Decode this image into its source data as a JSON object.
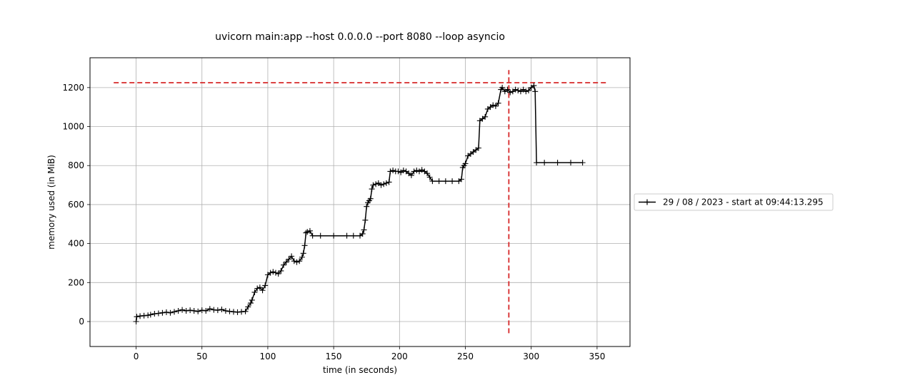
{
  "chart_data": {
    "type": "line",
    "title": "uvicorn main:app --host 0.0.0.0 --port 8080 --loop asyncio",
    "xlabel": "time (in seconds)",
    "ylabel": "memory used (in MiB)",
    "xlim": [
      -35,
      375
    ],
    "ylim": [
      -128,
      1353
    ],
    "xticks": [
      0,
      50,
      100,
      150,
      200,
      250,
      300,
      350
    ],
    "yticks": [
      0,
      200,
      400,
      600,
      800,
      1000,
      1200
    ],
    "xtick_labels": [
      "0",
      "50",
      "100",
      "150",
      "200",
      "250",
      "300",
      "350"
    ],
    "ytick_labels": [
      "0",
      "200",
      "400",
      "600",
      "800",
      "1000",
      "1200"
    ],
    "grid": true,
    "legend_position": "right",
    "colors": {
      "series": "#000000",
      "marker_line": "#d62728"
    },
    "series": [
      {
        "name": "29 / 08 / 2023 - start at 09:44:13.295",
        "marker": "+",
        "points": [
          [
            0,
            0
          ],
          [
            0.5,
            25
          ],
          [
            3,
            28
          ],
          [
            6,
            30
          ],
          [
            9,
            32
          ],
          [
            11,
            35
          ],
          [
            14,
            40
          ],
          [
            17,
            42
          ],
          [
            20,
            45
          ],
          [
            23,
            48
          ],
          [
            26,
            45
          ],
          [
            29,
            50
          ],
          [
            32,
            55
          ],
          [
            35,
            60
          ],
          [
            38,
            55
          ],
          [
            41,
            58
          ],
          [
            44,
            55
          ],
          [
            47,
            52
          ],
          [
            50,
            58
          ],
          [
            53,
            55
          ],
          [
            56,
            65
          ],
          [
            59,
            60
          ],
          [
            62,
            58
          ],
          [
            65,
            62
          ],
          [
            68,
            55
          ],
          [
            71,
            52
          ],
          [
            74,
            50
          ],
          [
            77,
            48
          ],
          [
            80,
            50
          ],
          [
            83,
            52
          ],
          [
            85,
            75
          ],
          [
            87,
            95
          ],
          [
            88,
            110
          ],
          [
            90,
            150
          ],
          [
            92,
            170
          ],
          [
            94,
            175
          ],
          [
            96,
            160
          ],
          [
            98,
            185
          ],
          [
            100,
            240
          ],
          [
            102,
            250
          ],
          [
            104,
            255
          ],
          [
            106,
            250
          ],
          [
            108,
            245
          ],
          [
            110,
            260
          ],
          [
            112,
            290
          ],
          [
            114,
            305
          ],
          [
            116,
            320
          ],
          [
            118,
            335
          ],
          [
            120,
            310
          ],
          [
            122,
            305
          ],
          [
            124,
            310
          ],
          [
            126,
            330
          ],
          [
            127,
            350
          ],
          [
            128,
            390
          ],
          [
            129,
            455
          ],
          [
            130,
            460
          ],
          [
            132,
            465
          ],
          [
            134,
            440
          ],
          [
            140,
            440
          ],
          [
            150,
            440
          ],
          [
            160,
            440
          ],
          [
            165,
            440
          ],
          [
            170,
            440
          ],
          [
            172,
            450
          ],
          [
            173,
            470
          ],
          [
            174,
            520
          ],
          [
            175,
            590
          ],
          [
            176,
            610
          ],
          [
            177,
            620
          ],
          [
            178,
            630
          ],
          [
            179,
            680
          ],
          [
            180,
            700
          ],
          [
            182,
            705
          ],
          [
            184,
            710
          ],
          [
            186,
            700
          ],
          [
            188,
            705
          ],
          [
            190,
            710
          ],
          [
            192,
            715
          ],
          [
            193,
            770
          ],
          [
            195,
            775
          ],
          [
            197,
            770
          ],
          [
            199,
            770
          ],
          [
            201,
            765
          ],
          [
            203,
            775
          ],
          [
            205,
            770
          ],
          [
            207,
            760
          ],
          [
            209,
            750
          ],
          [
            211,
            770
          ],
          [
            213,
            775
          ],
          [
            215,
            770
          ],
          [
            217,
            778
          ],
          [
            219,
            770
          ],
          [
            221,
            760
          ],
          [
            223,
            740
          ],
          [
            225,
            720
          ],
          [
            230,
            720
          ],
          [
            235,
            720
          ],
          [
            240,
            720
          ],
          [
            245,
            720
          ],
          [
            247,
            730
          ],
          [
            248,
            790
          ],
          [
            249,
            800
          ],
          [
            250,
            810
          ],
          [
            252,
            850
          ],
          [
            254,
            860
          ],
          [
            256,
            870
          ],
          [
            258,
            880
          ],
          [
            260,
            890
          ],
          [
            261,
            1030
          ],
          [
            263,
            1040
          ],
          [
            265,
            1050
          ],
          [
            267,
            1090
          ],
          [
            269,
            1100
          ],
          [
            271,
            1110
          ],
          [
            273,
            1105
          ],
          [
            275,
            1120
          ],
          [
            277,
            1190
          ],
          [
            278,
            1200
          ],
          [
            280,
            1180
          ],
          [
            282,
            1190
          ],
          [
            284,
            1175
          ],
          [
            286,
            1180
          ],
          [
            288,
            1190
          ],
          [
            290,
            1185
          ],
          [
            292,
            1180
          ],
          [
            294,
            1190
          ],
          [
            296,
            1180
          ],
          [
            298,
            1185
          ],
          [
            300,
            1200
          ],
          [
            302,
            1210
          ],
          [
            303,
            1180
          ],
          [
            304,
            815
          ],
          [
            310,
            815
          ],
          [
            320,
            815
          ],
          [
            330,
            815
          ],
          [
            339,
            815
          ]
        ]
      }
    ],
    "reference_lines": [
      {
        "orientation": "horizontal",
        "y": 1225,
        "x_from": -17,
        "x_to": 357,
        "style": "dashed",
        "color": "#d62728"
      },
      {
        "orientation": "vertical",
        "x": 283,
        "y_from": -60,
        "y_to": 1290,
        "style": "dashed",
        "color": "#d62728"
      }
    ]
  }
}
